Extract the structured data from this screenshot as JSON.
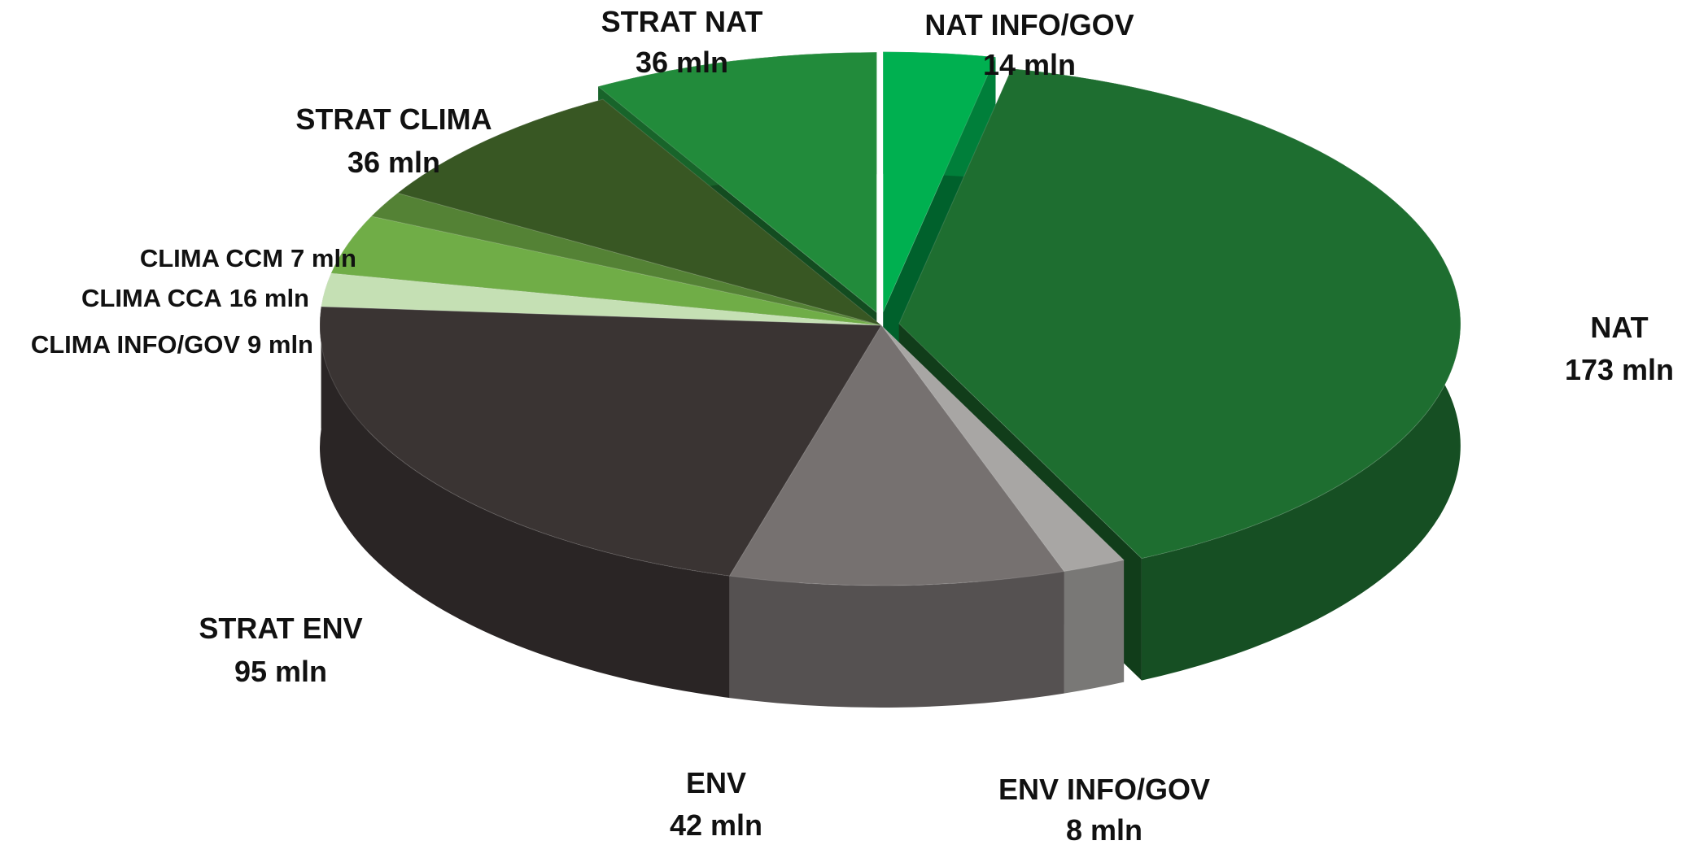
{
  "chart_data": {
    "type": "pie3d",
    "categories": [
      "NAT INFO/GOV",
      "NAT",
      "ENV INFO/GOV",
      "ENV",
      "STRAT ENV",
      "CLIMA INFO/GOV",
      "CLIMA CCA",
      "CLIMA CCM",
      "STRAT CLIMA",
      "STRAT NAT"
    ],
    "values": [
      14,
      173,
      8,
      42,
      95,
      9,
      16,
      7,
      36,
      36
    ],
    "value_labels": [
      "14 mln",
      "173 mln",
      "8 mln",
      "42 mln",
      "95 mln",
      "9 mln",
      "16 mln",
      "7 mln",
      "36 mln",
      "36 mln"
    ],
    "colors": [
      "#00b050",
      "#1e6e30",
      "#a8a6a4",
      "#767170",
      "#3a3433",
      "#c5e0b4",
      "#70ad47",
      "#548235",
      "#385723",
      "#228b3b"
    ],
    "exploded": [
      true,
      true,
      false,
      false,
      false,
      false,
      false,
      false,
      false,
      true
    ]
  }
}
